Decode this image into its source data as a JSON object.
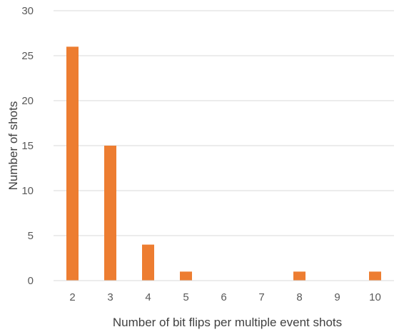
{
  "chart_data": {
    "type": "bar",
    "title": "",
    "xlabel": "Number of bit flips per multiple event shots",
    "ylabel": "Number of shots",
    "categories": [
      "2",
      "3",
      "4",
      "5",
      "6",
      "7",
      "8",
      "9",
      "10"
    ],
    "values": [
      26,
      15,
      4,
      1,
      0,
      0,
      1,
      0,
      1
    ],
    "ylim": [
      0,
      30
    ],
    "yticks": [
      0,
      5,
      10,
      15,
      20,
      25,
      30
    ],
    "grid": "horizontal",
    "legend": "none",
    "bar_color": "#ED7D31",
    "grid_color": "#D9D9D9"
  }
}
